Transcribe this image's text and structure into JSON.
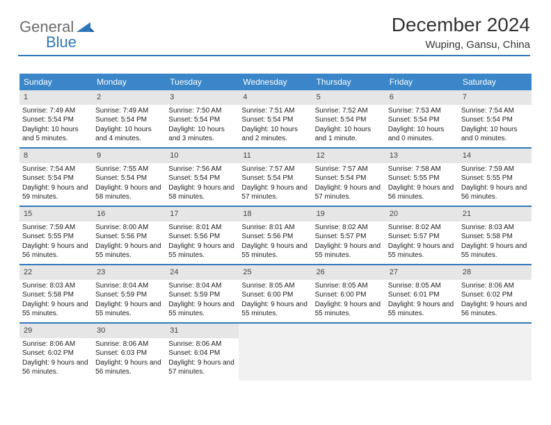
{
  "logo": {
    "part1": "General",
    "part2": "Blue"
  },
  "header": {
    "month_title": "December 2024",
    "location": "Wuping, Gansu, China"
  },
  "style": {
    "accent": "#2f77bb",
    "header_bg": "#3a86c8",
    "daynum_bg": "#e6e6e6",
    "empty_bg": "#f1f1f1",
    "page_bg": "#ffffff",
    "text_color": "#222222",
    "body_font_size_pt": 7.5,
    "title_font_size_pt": 21,
    "location_font_size_pt": 11
  },
  "calendar": {
    "type": "table",
    "day_names": [
      "Sunday",
      "Monday",
      "Tuesday",
      "Wednesday",
      "Thursday",
      "Friday",
      "Saturday"
    ],
    "weeks": [
      [
        {
          "n": "1",
          "sr": "Sunrise: 7:49 AM",
          "ss": "Sunset: 5:54 PM",
          "dl": "Daylight: 10 hours and 5 minutes."
        },
        {
          "n": "2",
          "sr": "Sunrise: 7:49 AM",
          "ss": "Sunset: 5:54 PM",
          "dl": "Daylight: 10 hours and 4 minutes."
        },
        {
          "n": "3",
          "sr": "Sunrise: 7:50 AM",
          "ss": "Sunset: 5:54 PM",
          "dl": "Daylight: 10 hours and 3 minutes."
        },
        {
          "n": "4",
          "sr": "Sunrise: 7:51 AM",
          "ss": "Sunset: 5:54 PM",
          "dl": "Daylight: 10 hours and 2 minutes."
        },
        {
          "n": "5",
          "sr": "Sunrise: 7:52 AM",
          "ss": "Sunset: 5:54 PM",
          "dl": "Daylight: 10 hours and 1 minute."
        },
        {
          "n": "6",
          "sr": "Sunrise: 7:53 AM",
          "ss": "Sunset: 5:54 PM",
          "dl": "Daylight: 10 hours and 0 minutes."
        },
        {
          "n": "7",
          "sr": "Sunrise: 7:54 AM",
          "ss": "Sunset: 5:54 PM",
          "dl": "Daylight: 10 hours and 0 minutes."
        }
      ],
      [
        {
          "n": "8",
          "sr": "Sunrise: 7:54 AM",
          "ss": "Sunset: 5:54 PM",
          "dl": "Daylight: 9 hours and 59 minutes."
        },
        {
          "n": "9",
          "sr": "Sunrise: 7:55 AM",
          "ss": "Sunset: 5:54 PM",
          "dl": "Daylight: 9 hours and 58 minutes."
        },
        {
          "n": "10",
          "sr": "Sunrise: 7:56 AM",
          "ss": "Sunset: 5:54 PM",
          "dl": "Daylight: 9 hours and 58 minutes."
        },
        {
          "n": "11",
          "sr": "Sunrise: 7:57 AM",
          "ss": "Sunset: 5:54 PM",
          "dl": "Daylight: 9 hours and 57 minutes."
        },
        {
          "n": "12",
          "sr": "Sunrise: 7:57 AM",
          "ss": "Sunset: 5:54 PM",
          "dl": "Daylight: 9 hours and 57 minutes."
        },
        {
          "n": "13",
          "sr": "Sunrise: 7:58 AM",
          "ss": "Sunset: 5:55 PM",
          "dl": "Daylight: 9 hours and 56 minutes."
        },
        {
          "n": "14",
          "sr": "Sunrise: 7:59 AM",
          "ss": "Sunset: 5:55 PM",
          "dl": "Daylight: 9 hours and 56 minutes."
        }
      ],
      [
        {
          "n": "15",
          "sr": "Sunrise: 7:59 AM",
          "ss": "Sunset: 5:55 PM",
          "dl": "Daylight: 9 hours and 56 minutes."
        },
        {
          "n": "16",
          "sr": "Sunrise: 8:00 AM",
          "ss": "Sunset: 5:56 PM",
          "dl": "Daylight: 9 hours and 55 minutes."
        },
        {
          "n": "17",
          "sr": "Sunrise: 8:01 AM",
          "ss": "Sunset: 5:56 PM",
          "dl": "Daylight: 9 hours and 55 minutes."
        },
        {
          "n": "18",
          "sr": "Sunrise: 8:01 AM",
          "ss": "Sunset: 5:56 PM",
          "dl": "Daylight: 9 hours and 55 minutes."
        },
        {
          "n": "19",
          "sr": "Sunrise: 8:02 AM",
          "ss": "Sunset: 5:57 PM",
          "dl": "Daylight: 9 hours and 55 minutes."
        },
        {
          "n": "20",
          "sr": "Sunrise: 8:02 AM",
          "ss": "Sunset: 5:57 PM",
          "dl": "Daylight: 9 hours and 55 minutes."
        },
        {
          "n": "21",
          "sr": "Sunrise: 8:03 AM",
          "ss": "Sunset: 5:58 PM",
          "dl": "Daylight: 9 hours and 55 minutes."
        }
      ],
      [
        {
          "n": "22",
          "sr": "Sunrise: 8:03 AM",
          "ss": "Sunset: 5:58 PM",
          "dl": "Daylight: 9 hours and 55 minutes."
        },
        {
          "n": "23",
          "sr": "Sunrise: 8:04 AM",
          "ss": "Sunset: 5:59 PM",
          "dl": "Daylight: 9 hours and 55 minutes."
        },
        {
          "n": "24",
          "sr": "Sunrise: 8:04 AM",
          "ss": "Sunset: 5:59 PM",
          "dl": "Daylight: 9 hours and 55 minutes."
        },
        {
          "n": "25",
          "sr": "Sunrise: 8:05 AM",
          "ss": "Sunset: 6:00 PM",
          "dl": "Daylight: 9 hours and 55 minutes."
        },
        {
          "n": "26",
          "sr": "Sunrise: 8:05 AM",
          "ss": "Sunset: 6:00 PM",
          "dl": "Daylight: 9 hours and 55 minutes."
        },
        {
          "n": "27",
          "sr": "Sunrise: 8:05 AM",
          "ss": "Sunset: 6:01 PM",
          "dl": "Daylight: 9 hours and 55 minutes."
        },
        {
          "n": "28",
          "sr": "Sunrise: 8:06 AM",
          "ss": "Sunset: 6:02 PM",
          "dl": "Daylight: 9 hours and 56 minutes."
        }
      ],
      [
        {
          "n": "29",
          "sr": "Sunrise: 8:06 AM",
          "ss": "Sunset: 6:02 PM",
          "dl": "Daylight: 9 hours and 56 minutes."
        },
        {
          "n": "30",
          "sr": "Sunrise: 8:06 AM",
          "ss": "Sunset: 6:03 PM",
          "dl": "Daylight: 9 hours and 56 minutes."
        },
        {
          "n": "31",
          "sr": "Sunrise: 8:06 AM",
          "ss": "Sunset: 6:04 PM",
          "dl": "Daylight: 9 hours and 57 minutes."
        },
        null,
        null,
        null,
        null
      ]
    ]
  }
}
